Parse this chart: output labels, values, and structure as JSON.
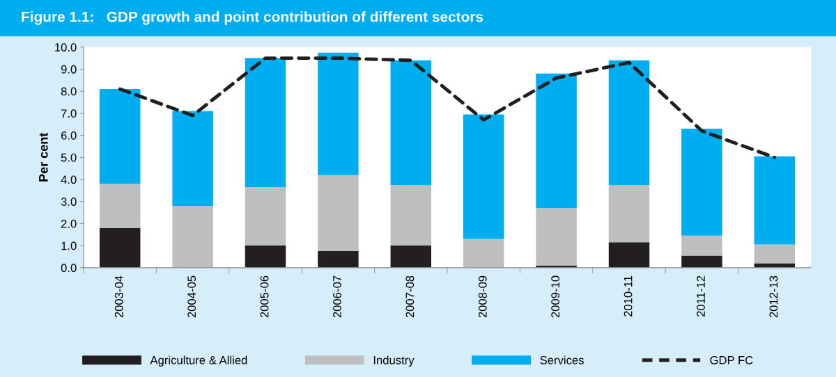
{
  "chart_data": {
    "type": "bar",
    "stacked": true,
    "title": "Figure 1.1:   GDP growth and point contribution of different sectors",
    "ylabel": "Per cent",
    "categories": [
      "2003-04",
      "2004-05",
      "2005-06",
      "2006-07",
      "2007-08",
      "2008-09",
      "2009-10",
      "2010-11",
      "2011-12",
      "2012-13"
    ],
    "series": [
      {
        "name": "Agriculture & Allied",
        "color": "#231f20",
        "values": [
          1.8,
          0.0,
          1.0,
          0.75,
          1.0,
          0.0,
          0.1,
          1.15,
          0.55,
          0.2
        ]
      },
      {
        "name": "Industry",
        "color": "#bcbec0",
        "values": [
          2.0,
          2.8,
          2.65,
          3.45,
          2.75,
          1.3,
          2.6,
          2.6,
          0.9,
          0.85
        ]
      },
      {
        "name": "Services",
        "color": "#00aeef",
        "values": [
          4.3,
          4.3,
          5.85,
          5.55,
          5.65,
          5.65,
          6.1,
          5.65,
          4.85,
          4.0
        ]
      },
      {
        "name": "GDP FC",
        "type": "line",
        "color": "#231f20",
        "line_style": "dashed",
        "values": [
          8.1,
          6.9,
          9.5,
          9.5,
          9.4,
          6.7,
          8.6,
          9.3,
          6.2,
          5.0
        ]
      }
    ],
    "ylim": [
      0,
      10
    ],
    "yticks": [
      {
        "value": 0,
        "label": "0.0"
      },
      {
        "value": 1,
        "label": "1.0"
      },
      {
        "value": 2,
        "label": "2.0"
      },
      {
        "value": 3,
        "label": "3.0"
      },
      {
        "value": 4,
        "label": "4.0"
      },
      {
        "value": 5,
        "label": "5.0"
      },
      {
        "value": 6,
        "label": "6.0"
      },
      {
        "value": 7,
        "label": "7.0"
      },
      {
        "value": 8,
        "label": "8.0"
      },
      {
        "value": 9,
        "label": "9.0"
      },
      {
        "value": 10,
        "label": "10.0"
      }
    ],
    "grid": false,
    "legend": "bottom"
  }
}
